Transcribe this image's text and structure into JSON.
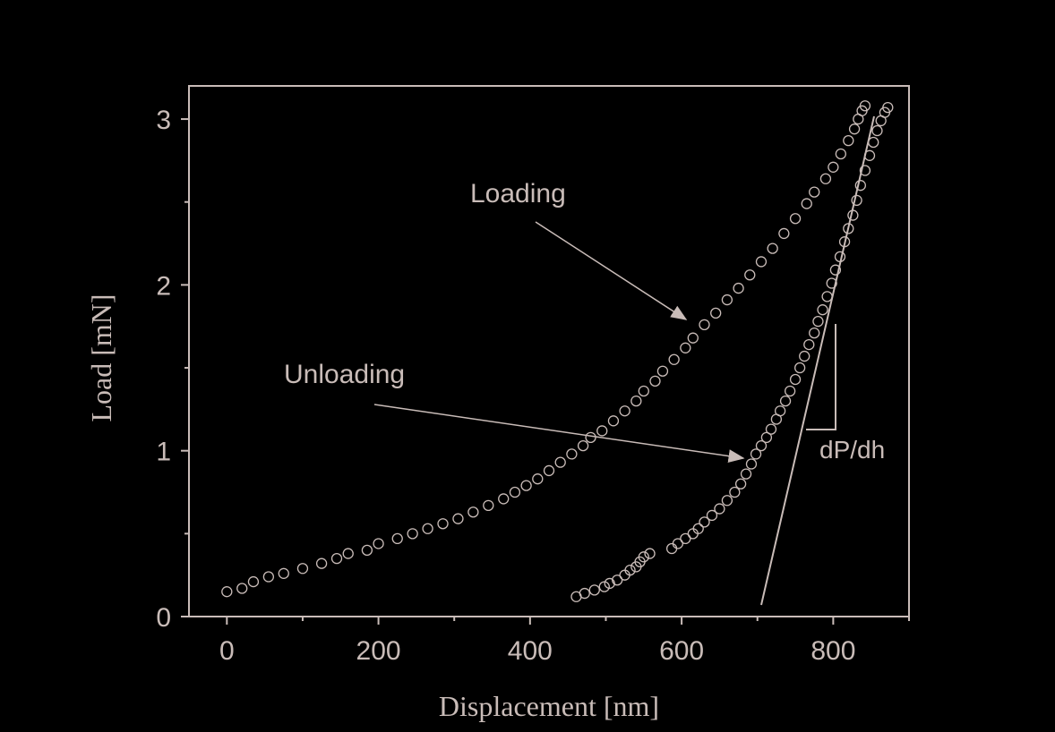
{
  "chart_data": {
    "type": "scatter",
    "xlabel": "Displacement [nm]",
    "ylabel": "Load [mN]",
    "xlim": [
      -50,
      900
    ],
    "ylim": [
      0,
      3.2
    ],
    "xticks": [
      0,
      200,
      400,
      600,
      800
    ],
    "yticks": [
      0,
      1,
      2,
      3
    ],
    "xminorticks": [
      100,
      300,
      500,
      700,
      900
    ],
    "yminorticks": [
      0.5,
      1.5,
      2.5
    ],
    "color": "#c9bcb8",
    "annotations": [
      "Loading",
      "Unloading",
      "dP/dh"
    ],
    "series": [
      {
        "color": "#c9bcb8",
        "x": [
          0,
          20,
          35,
          55,
          75,
          100,
          125,
          145,
          160,
          185,
          200,
          225,
          245,
          265,
          285,
          305,
          325,
          345,
          365,
          380,
          395,
          410,
          425,
          440,
          455,
          470,
          480,
          495,
          510,
          525,
          540,
          550,
          565,
          575,
          590,
          605,
          615,
          630,
          645,
          660,
          675,
          690,
          705,
          720,
          735,
          750,
          765,
          775,
          790,
          800,
          810,
          820,
          828,
          833,
          838,
          842
        ],
        "values": [
          0.15,
          0.17,
          0.21,
          0.24,
          0.26,
          0.29,
          0.32,
          0.35,
          0.38,
          0.4,
          0.44,
          0.47,
          0.5,
          0.53,
          0.56,
          0.59,
          0.63,
          0.67,
          0.71,
          0.75,
          0.79,
          0.83,
          0.88,
          0.93,
          0.98,
          1.03,
          1.08,
          1.12,
          1.18,
          1.24,
          1.3,
          1.36,
          1.42,
          1.48,
          1.55,
          1.62,
          1.68,
          1.76,
          1.83,
          1.91,
          1.98,
          2.06,
          2.14,
          2.22,
          2.31,
          2.4,
          2.49,
          2.56,
          2.64,
          2.71,
          2.79,
          2.87,
          2.94,
          3.0,
          3.05,
          3.08
        ]
      },
      {
        "color": "#c9bcb8",
        "x": [
          461,
          472,
          485,
          498,
          505,
          515,
          525,
          532,
          540,
          545,
          550,
          558,
          587,
          595,
          605,
          615,
          622,
          630,
          640,
          650,
          660,
          670,
          678,
          685,
          692,
          698,
          705,
          712,
          718,
          725,
          730,
          737,
          743,
          750,
          756,
          762,
          768,
          775,
          780,
          786,
          792,
          798,
          803,
          809,
          815,
          820,
          826,
          831,
          836,
          842,
          848,
          853,
          858,
          863,
          868,
          872
        ],
        "values": [
          0.12,
          0.14,
          0.16,
          0.18,
          0.2,
          0.22,
          0.25,
          0.28,
          0.3,
          0.33,
          0.36,
          0.38,
          0.41,
          0.44,
          0.47,
          0.5,
          0.53,
          0.57,
          0.61,
          0.65,
          0.7,
          0.75,
          0.8,
          0.86,
          0.92,
          0.98,
          1.03,
          1.08,
          1.13,
          1.19,
          1.24,
          1.3,
          1.36,
          1.43,
          1.5,
          1.57,
          1.64,
          1.71,
          1.78,
          1.85,
          1.93,
          2.01,
          2.09,
          2.17,
          2.26,
          2.34,
          2.42,
          2.51,
          2.6,
          2.69,
          2.78,
          2.86,
          2.93,
          2.99,
          3.04,
          3.07
        ]
      }
    ]
  }
}
